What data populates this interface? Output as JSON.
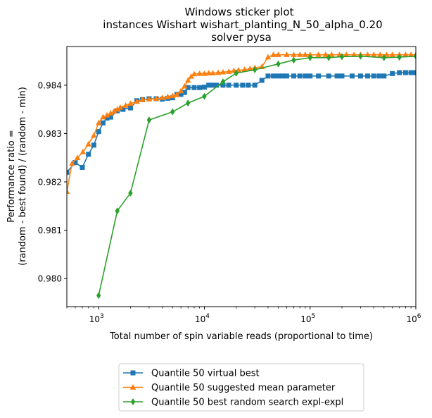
{
  "chart_data": {
    "type": "line",
    "title_lines": [
      "Windows sticker plot",
      "instances Wishart wishart_planting_N_50_alpha_0.20",
      "solver pysa"
    ],
    "xlabel": "Total number of spin variable reads (proportional to time)",
    "ylabel_lines": [
      "Performance ratio =",
      "(random - best found) / (random - min)"
    ],
    "x_scale": "log",
    "xlim": [
      500,
      1000000
    ],
    "ylim": [
      0.97942,
      0.9848
    ],
    "x_ticks": [
      {
        "value": 1000,
        "base": "10",
        "exp": "3"
      },
      {
        "value": 10000,
        "base": "10",
        "exp": "4"
      },
      {
        "value": 100000,
        "base": "10",
        "exp": "5"
      },
      {
        "value": 1000000,
        "base": "10",
        "exp": "6"
      }
    ],
    "y_ticks": [
      {
        "value": 0.98,
        "label": "0.980"
      },
      {
        "value": 0.981,
        "label": "0.981"
      },
      {
        "value": 0.982,
        "label": "0.982"
      },
      {
        "value": 0.983,
        "label": "0.983"
      },
      {
        "value": 0.984,
        "label": "0.984"
      }
    ],
    "grid": false,
    "legend_position": "below-center",
    "series": [
      {
        "name": "Quantile 50 virtual best",
        "color": "#1f77b4",
        "marker": "square",
        "x": [
          500,
          600,
          700,
          800,
          900,
          1000,
          1100,
          1200,
          1300,
          1500,
          1700,
          2000,
          2300,
          2600,
          3000,
          3500,
          4000,
          4500,
          5000,
          5500,
          6000,
          6500,
          7000,
          8000,
          9000,
          10000,
          11000,
          12000,
          13000,
          15000,
          17000,
          20000,
          23000,
          26000,
          30000,
          35000,
          40000,
          45000,
          50000,
          55000,
          60000,
          70000,
          80000,
          90000,
          100000,
          120000,
          150000,
          180000,
          200000,
          250000,
          300000,
          350000,
          400000,
          450000,
          500000,
          600000,
          700000,
          800000,
          900000,
          1000000
        ],
        "y": [
          0.9822,
          0.9824,
          0.9823,
          0.98257,
          0.98276,
          0.98304,
          0.98322,
          0.98332,
          0.98334,
          0.98347,
          0.9835,
          0.98353,
          0.98368,
          0.9837,
          0.98372,
          0.98372,
          0.98371,
          0.98373,
          0.98374,
          0.98381,
          0.98381,
          0.98385,
          0.98395,
          0.98395,
          0.98395,
          0.98396,
          0.984,
          0.984,
          0.984,
          0.984,
          0.984,
          0.984,
          0.984,
          0.984,
          0.984,
          0.9841,
          0.98419,
          0.98419,
          0.98419,
          0.98419,
          0.98419,
          0.98419,
          0.98419,
          0.98419,
          0.98419,
          0.98419,
          0.98419,
          0.98419,
          0.98419,
          0.98419,
          0.98419,
          0.98419,
          0.98419,
          0.98419,
          0.98419,
          0.98424,
          0.98426,
          0.98426,
          0.98426,
          0.98426
        ]
      },
      {
        "name": "Quantile 50 suggested mean parameter",
        "color": "#ff7f0e",
        "marker": "triangle",
        "x": [
          500,
          560,
          630,
          710,
          800,
          900,
          1000,
          1100,
          1200,
          1300,
          1400,
          1500,
          1600,
          1800,
          2000,
          2300,
          2600,
          3000,
          3500,
          4000,
          4500,
          5000,
          5500,
          6000,
          6500,
          7000,
          7500,
          8000,
          9000,
          10000,
          11000,
          12000,
          13500,
          15000,
          17000,
          19000,
          21000,
          24000,
          27000,
          30000,
          35000,
          40000,
          45000,
          50000,
          60000,
          70000,
          80000,
          90000,
          100000,
          120000,
          140000,
          160000,
          190000,
          220000,
          260000,
          300000,
          350000,
          400000,
          460000,
          530000,
          600000,
          700000,
          800000,
          900000,
          1000000
        ],
        "y": [
          0.9818,
          0.98238,
          0.9825,
          0.98262,
          0.98278,
          0.98296,
          0.98322,
          0.98334,
          0.98338,
          0.98342,
          0.98346,
          0.9835,
          0.98354,
          0.98358,
          0.98362,
          0.98366,
          0.9837,
          0.98371,
          0.98372,
          0.98374,
          0.98376,
          0.98378,
          0.9838,
          0.98388,
          0.98398,
          0.9841,
          0.98418,
          0.98423,
          0.98424,
          0.98424,
          0.98425,
          0.98425,
          0.98426,
          0.98427,
          0.98428,
          0.9843,
          0.98431,
          0.98432,
          0.98434,
          0.98436,
          0.98438,
          0.98458,
          0.98463,
          0.98463,
          0.98463,
          0.98463,
          0.98463,
          0.98463,
          0.98463,
          0.98463,
          0.98463,
          0.98463,
          0.98463,
          0.98463,
          0.98463,
          0.98463,
          0.98463,
          0.98463,
          0.98463,
          0.98463,
          0.98463,
          0.98463,
          0.98463,
          0.98463,
          0.98463
        ]
      },
      {
        "name": "Quantile 50  best random search expl-expl",
        "color": "#2ca02c",
        "marker": "diamond",
        "x": [
          1000,
          1500,
          2000,
          3000,
          5000,
          7000,
          10000,
          15000,
          20000,
          30000,
          50000,
          70000,
          100000,
          150000,
          200000,
          300000,
          500000,
          700000,
          1000000
        ],
        "y": [
          0.97965,
          0.9814,
          0.98177,
          0.98328,
          0.98345,
          0.98363,
          0.98377,
          0.98407,
          0.98425,
          0.98432,
          0.98444,
          0.98452,
          0.98457,
          0.98457,
          0.98459,
          0.9846,
          0.98457,
          0.98458,
          0.9846
        ]
      }
    ]
  }
}
